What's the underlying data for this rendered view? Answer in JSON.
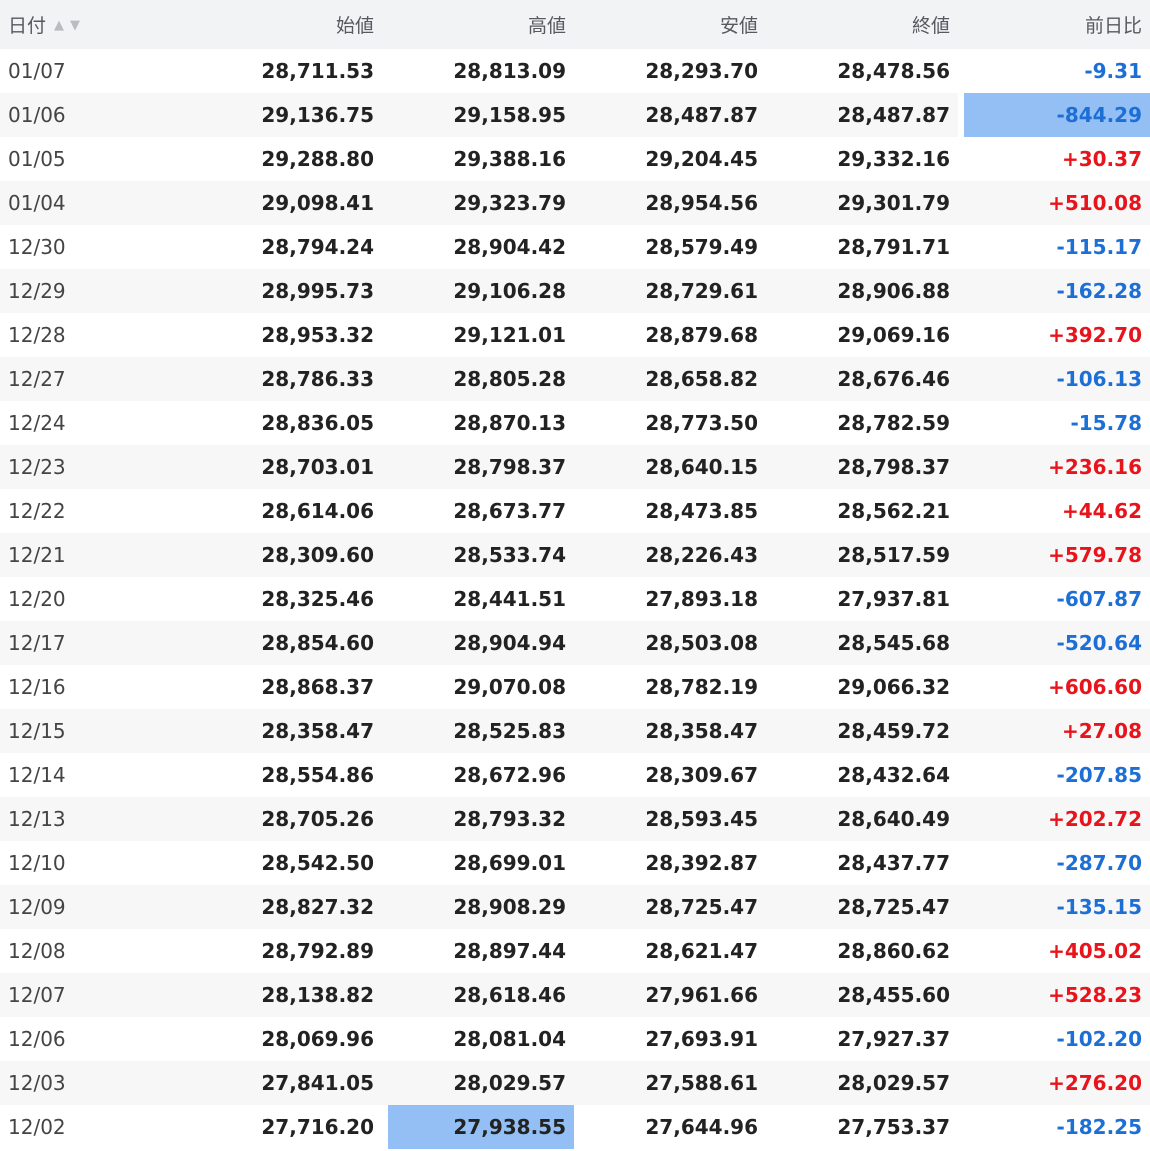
{
  "columns": {
    "date": "日付",
    "open": "始値",
    "high": "高値",
    "low": "安値",
    "close": "終値",
    "change": "前日比"
  },
  "sort_icons": {
    "asc": "▲",
    "desc": "▼"
  },
  "colors": {
    "up": "#e8141b",
    "down": "#1d6fd6",
    "selection": "#93bff5",
    "header_bg": "#f2f3f5"
  },
  "selected_cells": [
    {
      "row": 1,
      "column": "change"
    },
    {
      "row": 24,
      "column": "high"
    }
  ],
  "rows": [
    {
      "date": "01/07",
      "open": "28,711.53",
      "high": "28,813.09",
      "low": "28,293.70",
      "close": "28,478.56",
      "change": "-9.31",
      "dir": "down"
    },
    {
      "date": "01/06",
      "open": "29,136.75",
      "high": "29,158.95",
      "low": "28,487.87",
      "close": "28,487.87",
      "change": "-844.29",
      "dir": "down"
    },
    {
      "date": "01/05",
      "open": "29,288.80",
      "high": "29,388.16",
      "low": "29,204.45",
      "close": "29,332.16",
      "change": "+30.37",
      "dir": "up"
    },
    {
      "date": "01/04",
      "open": "29,098.41",
      "high": "29,323.79",
      "low": "28,954.56",
      "close": "29,301.79",
      "change": "+510.08",
      "dir": "up"
    },
    {
      "date": "12/30",
      "open": "28,794.24",
      "high": "28,904.42",
      "low": "28,579.49",
      "close": "28,791.71",
      "change": "-115.17",
      "dir": "down"
    },
    {
      "date": "12/29",
      "open": "28,995.73",
      "high": "29,106.28",
      "low": "28,729.61",
      "close": "28,906.88",
      "change": "-162.28",
      "dir": "down"
    },
    {
      "date": "12/28",
      "open": "28,953.32",
      "high": "29,121.01",
      "low": "28,879.68",
      "close": "29,069.16",
      "change": "+392.70",
      "dir": "up"
    },
    {
      "date": "12/27",
      "open": "28,786.33",
      "high": "28,805.28",
      "low": "28,658.82",
      "close": "28,676.46",
      "change": "-106.13",
      "dir": "down"
    },
    {
      "date": "12/24",
      "open": "28,836.05",
      "high": "28,870.13",
      "low": "28,773.50",
      "close": "28,782.59",
      "change": "-15.78",
      "dir": "down"
    },
    {
      "date": "12/23",
      "open": "28,703.01",
      "high": "28,798.37",
      "low": "28,640.15",
      "close": "28,798.37",
      "change": "+236.16",
      "dir": "up"
    },
    {
      "date": "12/22",
      "open": "28,614.06",
      "high": "28,673.77",
      "low": "28,473.85",
      "close": "28,562.21",
      "change": "+44.62",
      "dir": "up"
    },
    {
      "date": "12/21",
      "open": "28,309.60",
      "high": "28,533.74",
      "low": "28,226.43",
      "close": "28,517.59",
      "change": "+579.78",
      "dir": "up"
    },
    {
      "date": "12/20",
      "open": "28,325.46",
      "high": "28,441.51",
      "low": "27,893.18",
      "close": "27,937.81",
      "change": "-607.87",
      "dir": "down"
    },
    {
      "date": "12/17",
      "open": "28,854.60",
      "high": "28,904.94",
      "low": "28,503.08",
      "close": "28,545.68",
      "change": "-520.64",
      "dir": "down"
    },
    {
      "date": "12/16",
      "open": "28,868.37",
      "high": "29,070.08",
      "low": "28,782.19",
      "close": "29,066.32",
      "change": "+606.60",
      "dir": "up"
    },
    {
      "date": "12/15",
      "open": "28,358.47",
      "high": "28,525.83",
      "low": "28,358.47",
      "close": "28,459.72",
      "change": "+27.08",
      "dir": "up"
    },
    {
      "date": "12/14",
      "open": "28,554.86",
      "high": "28,672.96",
      "low": "28,309.67",
      "close": "28,432.64",
      "change": "-207.85",
      "dir": "down"
    },
    {
      "date": "12/13",
      "open": "28,705.26",
      "high": "28,793.32",
      "low": "28,593.45",
      "close": "28,640.49",
      "change": "+202.72",
      "dir": "up"
    },
    {
      "date": "12/10",
      "open": "28,542.50",
      "high": "28,699.01",
      "low": "28,392.87",
      "close": "28,437.77",
      "change": "-287.70",
      "dir": "down"
    },
    {
      "date": "12/09",
      "open": "28,827.32",
      "high": "28,908.29",
      "low": "28,725.47",
      "close": "28,725.47",
      "change": "-135.15",
      "dir": "down"
    },
    {
      "date": "12/08",
      "open": "28,792.89",
      "high": "28,897.44",
      "low": "28,621.47",
      "close": "28,860.62",
      "change": "+405.02",
      "dir": "up"
    },
    {
      "date": "12/07",
      "open": "28,138.82",
      "high": "28,618.46",
      "low": "27,961.66",
      "close": "28,455.60",
      "change": "+528.23",
      "dir": "up"
    },
    {
      "date": "12/06",
      "open": "28,069.96",
      "high": "28,081.04",
      "low": "27,693.91",
      "close": "27,927.37",
      "change": "-102.20",
      "dir": "down"
    },
    {
      "date": "12/03",
      "open": "27,841.05",
      "high": "28,029.57",
      "low": "27,588.61",
      "close": "28,029.57",
      "change": "+276.20",
      "dir": "up"
    },
    {
      "date": "12/02",
      "open": "27,716.20",
      "high": "27,938.55",
      "low": "27,644.96",
      "close": "27,753.37",
      "change": "-182.25",
      "dir": "down"
    }
  ]
}
